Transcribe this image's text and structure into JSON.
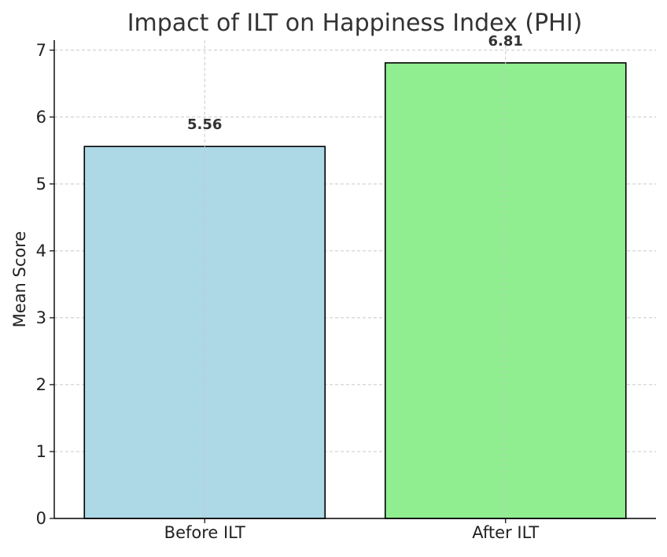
{
  "chart_data": {
    "type": "bar",
    "title": "Impact of ILT on Happiness Index (PHI)",
    "xlabel": "",
    "ylabel": "Mean Score",
    "categories": [
      "Before ILT",
      "After ILT"
    ],
    "values": [
      5.56,
      6.81
    ],
    "value_labels": [
      "5.56",
      "6.81"
    ],
    "colors": [
      "#add8e6",
      "#90ee90"
    ],
    "edge_color": "#000000",
    "ylim": [
      0,
      7.15
    ],
    "yticks": [
      0,
      1,
      2,
      3,
      4,
      5,
      6,
      7
    ],
    "grid": true,
    "legend": "none"
  }
}
